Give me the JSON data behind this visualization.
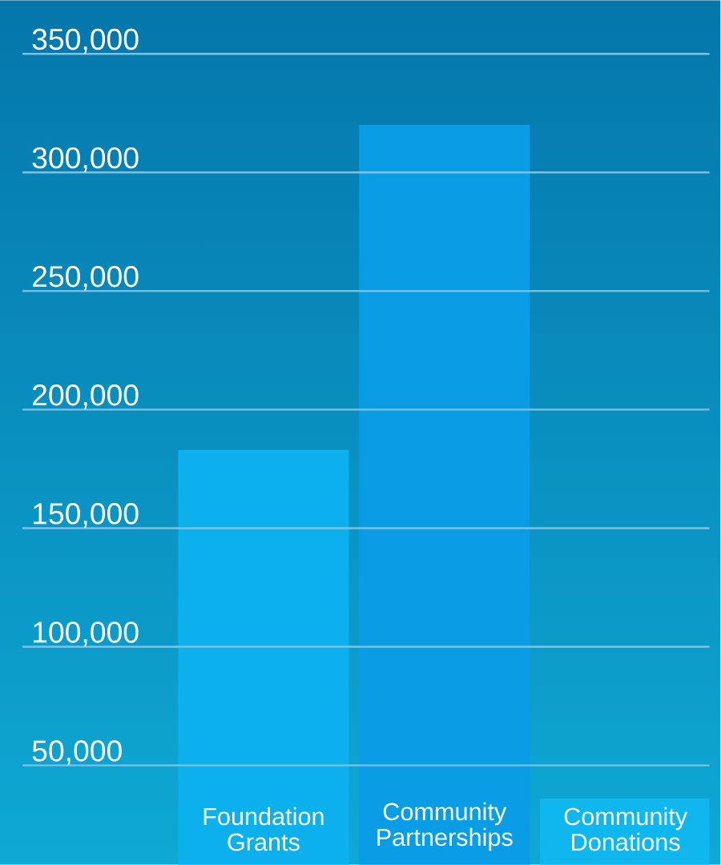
{
  "chart_data": {
    "type": "bar",
    "categories": [
      "Foundation Grants",
      "Community Partnerships",
      "Community Donations"
    ],
    "values": [
      183000,
      320000,
      36000
    ],
    "colors": [
      "#0cb0ec",
      "#0a9de6",
      "#10b6ee"
    ],
    "ylim": [
      8100,
      372600
    ],
    "yticks": [
      {
        "value": 50000,
        "label": "50,000"
      },
      {
        "value": 100000,
        "label": "100,000"
      },
      {
        "value": 150000,
        "label": "150,000"
      },
      {
        "value": 200000,
        "label": "200,000"
      },
      {
        "value": 250000,
        "label": "250,000"
      },
      {
        "value": 300000,
        "label": "300,000"
      },
      {
        "value": 350000,
        "label": "350,000"
      }
    ],
    "grid": "y"
  }
}
